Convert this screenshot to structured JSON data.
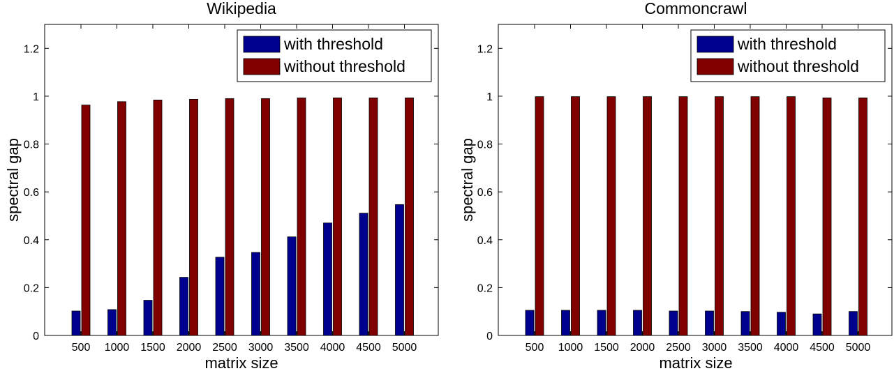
{
  "colors": {
    "with_threshold": "#00008f",
    "without_threshold": "#800000"
  },
  "chart_data": [
    {
      "type": "bar",
      "title": "Wikipedia",
      "xlabel": "matrix size",
      "ylabel": "spectral gap",
      "ylim": [
        0,
        1.3
      ],
      "yticks": [
        "0",
        "0.2",
        "0.4",
        "0.6",
        "0.8",
        "1",
        "1.2"
      ],
      "categories": [
        "500",
        "1000",
        "1500",
        "2000",
        "2500",
        "3000",
        "3500",
        "4000",
        "4500",
        "5000"
      ],
      "legend": {
        "position": "top-right",
        "entries": [
          "with threshold",
          "without threshold"
        ]
      },
      "series": [
        {
          "name": "with threshold",
          "values": [
            0.102,
            0.108,
            0.147,
            0.243,
            0.327,
            0.347,
            0.412,
            0.47,
            0.511,
            0.547
          ]
        },
        {
          "name": "without threshold",
          "values": [
            0.963,
            0.977,
            0.984,
            0.987,
            0.99,
            0.99,
            0.993,
            0.993,
            0.993,
            0.993
          ]
        }
      ]
    },
    {
      "type": "bar",
      "title": "Commoncrawl",
      "xlabel": "matrix size",
      "ylabel": "spectral gap",
      "ylim": [
        0,
        1.3
      ],
      "yticks": [
        "0",
        "0.2",
        "0.4",
        "0.6",
        "0.8",
        "1",
        "1.2"
      ],
      "categories": [
        "500",
        "1000",
        "1500",
        "2000",
        "2500",
        "3000",
        "3500",
        "4000",
        "4500",
        "5000"
      ],
      "legend": {
        "position": "top-right",
        "entries": [
          "with threshold",
          "without threshold"
        ]
      },
      "series": [
        {
          "name": "with threshold",
          "values": [
            0.105,
            0.105,
            0.105,
            0.105,
            0.102,
            0.102,
            0.1,
            0.097,
            0.09,
            0.1
          ]
        },
        {
          "name": "without threshold",
          "values": [
            0.998,
            0.998,
            0.998,
            0.998,
            0.998,
            0.998,
            0.998,
            0.998,
            0.993,
            0.993
          ]
        }
      ]
    }
  ]
}
